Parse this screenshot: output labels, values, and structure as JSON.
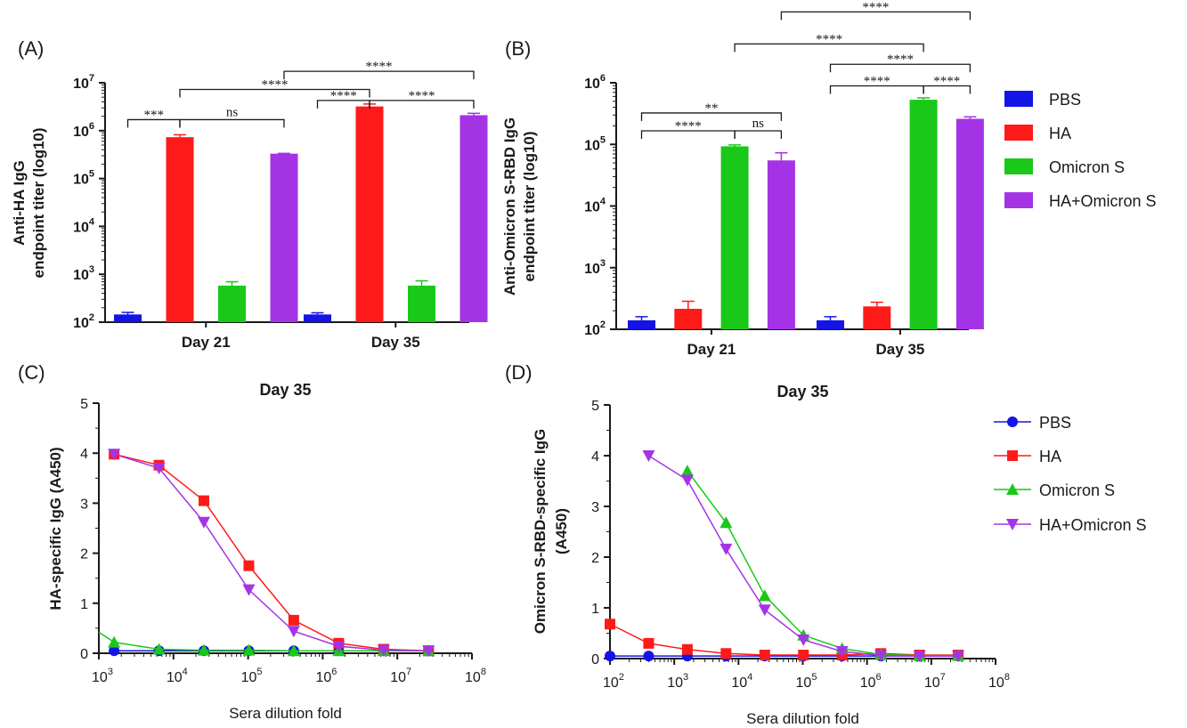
{
  "colors": {
    "PBS": "#1414e6",
    "HA": "#ff1a1a",
    "Omicron S": "#19c819",
    "HA+Omicron S": "#a533e6"
  },
  "panels": {
    "A": "(A)",
    "B": "(B)",
    "C": "(C)",
    "D": "(D)"
  },
  "legend_bar": [
    "PBS",
    "HA",
    "Omicron S",
    "HA+Omicron S"
  ],
  "legend_line": [
    "PBS",
    "HA",
    "Omicron S",
    "HA+Omicron S"
  ],
  "chart_data": [
    {
      "id": "A",
      "type": "bar",
      "ylabel": [
        "Anti-HA IgG",
        "endpoint titer (log10)"
      ],
      "yscale": "log",
      "ylim": [
        100,
        10000000
      ],
      "categories": [
        "Day 21",
        "Day 35"
      ],
      "series": [
        {
          "name": "PBS",
          "values": [
            145,
            145
          ],
          "err": [
            15,
            12
          ]
        },
        {
          "name": "HA",
          "values": [
            730000,
            3200000
          ],
          "err": [
            90000,
            400000
          ]
        },
        {
          "name": "Omicron S",
          "values": [
            580,
            580
          ],
          "err": [
            120,
            150
          ]
        },
        {
          "name": "HA+Omicron S",
          "values": [
            330000,
            2100000
          ],
          "err": [
            5000,
            200000
          ]
        }
      ],
      "comparisons": [
        {
          "label": "***",
          "from": [
            0,
            0
          ],
          "to": [
            0,
            1
          ],
          "level": 6.23
        },
        {
          "label": "ns",
          "from": [
            0,
            1
          ],
          "to": [
            0,
            3
          ],
          "level": 6.23
        },
        {
          "label": "****",
          "from": [
            0,
            1
          ],
          "to": [
            1,
            1
          ],
          "level": 6.86
        },
        {
          "label": "****",
          "from": [
            1,
            0
          ],
          "to": [
            1,
            1
          ],
          "level": 6.63
        },
        {
          "label": "****",
          "from": [
            1,
            1
          ],
          "to": [
            1,
            3
          ],
          "level": 6.63
        },
        {
          "label": "****",
          "from": [
            0,
            3
          ],
          "to": [
            1,
            3
          ],
          "level": 7.24
        }
      ]
    },
    {
      "id": "B",
      "type": "bar",
      "ylabel": [
        "Anti-Omicron S-RBD IgG",
        "endpoint titer (log10)"
      ],
      "yscale": "log",
      "ylim": [
        100,
        1000000
      ],
      "categories": [
        "Day 21",
        "Day 35"
      ],
      "series": [
        {
          "name": "PBS",
          "values": [
            140,
            140
          ],
          "err": [
            20,
            20
          ]
        },
        {
          "name": "HA",
          "values": [
            215,
            235
          ],
          "err": [
            70,
            40
          ]
        },
        {
          "name": "Omicron S",
          "values": [
            93000,
            530000
          ],
          "err": [
            5000,
            40000
          ]
        },
        {
          "name": "HA+Omicron S",
          "values": [
            55000,
            260000
          ],
          "err": [
            18000,
            20000
          ]
        }
      ],
      "comparisons": [
        {
          "label": "****",
          "from": [
            0,
            0
          ],
          "to": [
            0,
            2
          ],
          "level": 5.22
        },
        {
          "label": "ns",
          "from": [
            0,
            2
          ],
          "to": [
            0,
            3
          ],
          "level": 5.22
        },
        {
          "label": "**",
          "from": [
            0,
            0
          ],
          "to": [
            0,
            3
          ],
          "level": 5.51
        },
        {
          "label": "****",
          "from": [
            0,
            2
          ],
          "to": [
            1,
            2
          ],
          "level": 6.63
        },
        {
          "label": "****",
          "from": [
            0,
            3
          ],
          "to": [
            1,
            3
          ],
          "level": 7.15
        },
        {
          "label": "****",
          "from": [
            1,
            0
          ],
          "to": [
            1,
            2
          ],
          "level": 5.95
        },
        {
          "label": "****",
          "from": [
            1,
            2
          ],
          "to": [
            1,
            3
          ],
          "level": 5.95
        },
        {
          "label": "****",
          "from": [
            1,
            0
          ],
          "to": [
            1,
            3
          ],
          "level": 6.3
        }
      ]
    },
    {
      "id": "C",
      "type": "line",
      "title": "Day 35",
      "xlabel": "Sera dilution fold",
      "ylabel": "HA-specific IgG (A450)",
      "xscale": "log",
      "xlim": [
        1000,
        100000000
      ],
      "ylim": [
        0,
        5
      ],
      "yticks": [
        0,
        1,
        2,
        3,
        4,
        5
      ],
      "x": [
        1600,
        6400,
        25600,
        102400,
        409600,
        1638400,
        6553600,
        26214400
      ],
      "series": [
        {
          "name": "PBS",
          "marker": "circle",
          "values": [
            0.05,
            0.05,
            0.05,
            0.05,
            0.05,
            0.05,
            0.05,
            0.05
          ],
          "lead": null
        },
        {
          "name": "HA",
          "marker": "square",
          "values": [
            3.98,
            3.76,
            3.05,
            1.75,
            0.66,
            0.2,
            0.08,
            0.05
          ],
          "lead": null
        },
        {
          "name": "Omicron S",
          "marker": "triangle-up",
          "values": [
            0.22,
            0.08,
            0.06,
            0.06,
            0.05,
            0.05,
            0.05,
            0.05
          ],
          "lead": 0.42
        },
        {
          "name": "HA+Omicron S",
          "marker": "triangle-down",
          "values": [
            3.98,
            3.7,
            2.62,
            1.27,
            0.44,
            0.14,
            0.06,
            0.05
          ],
          "lead": null
        }
      ]
    },
    {
      "id": "D",
      "type": "line",
      "title": "Day 35",
      "xlabel": "Sera dilution fold",
      "ylabel": [
        "Omicron S-RBD-specific IgG",
        "(A450)"
      ],
      "xscale": "log",
      "xlim": [
        100,
        100000000
      ],
      "ylim": [
        0,
        5
      ],
      "yticks": [
        0,
        1,
        2,
        3,
        4,
        5
      ],
      "x": [
        100,
        400,
        1600,
        6400,
        25600,
        102400,
        409600,
        1638400,
        6553600,
        26214400
      ],
      "series": [
        {
          "name": "PBS",
          "marker": "circle",
          "x": [
            100,
            400,
            1600,
            6400,
            25600,
            102400,
            409600,
            1638400,
            6553600,
            26214400
          ],
          "values": [
            0.05,
            0.05,
            0.05,
            0.05,
            0.05,
            0.05,
            0.05,
            0.05,
            0.05,
            0.05
          ]
        },
        {
          "name": "HA",
          "marker": "square",
          "x": [
            100,
            400,
            1600,
            6400,
            25600,
            102400,
            409600,
            1638400,
            6553600,
            26214400
          ],
          "values": [
            0.68,
            0.3,
            0.18,
            0.1,
            0.07,
            0.07,
            0.07,
            0.1,
            0.07,
            0.07
          ]
        },
        {
          "name": "Omicron S",
          "marker": "triangle-up",
          "x": [
            1600,
            6400,
            25600,
            102400,
            409600,
            1638400,
            6553600,
            26214400
          ],
          "values": [
            3.7,
            2.68,
            1.24,
            0.46,
            0.2,
            0.08,
            0.06,
            0.06
          ]
        },
        {
          "name": "HA+Omicron S",
          "marker": "triangle-down",
          "x": [
            400,
            1600,
            6400,
            25600,
            102400,
            409600,
            1638400,
            6553600,
            26214400
          ],
          "values": [
            4.0,
            3.52,
            2.16,
            0.96,
            0.37,
            0.14,
            0.06,
            0.05,
            0.05
          ]
        }
      ]
    }
  ]
}
